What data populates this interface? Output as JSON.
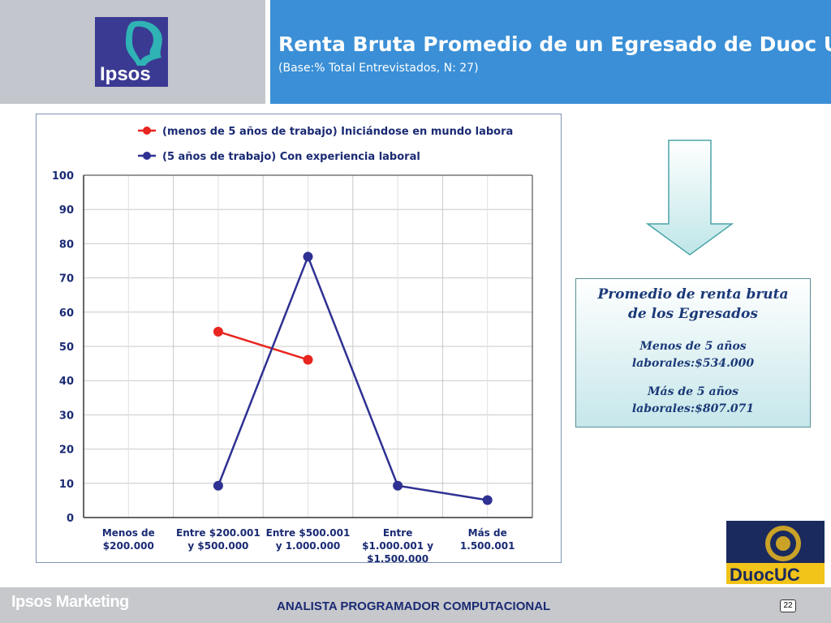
{
  "header": {
    "title": "Renta Bruta Promedio de un Egresado de Duoc UC",
    "subtitle": "(Base:% Total Entrevistados, N: 27)",
    "logo_text": "Ipsos"
  },
  "chart_data": {
    "type": "line",
    "categories": [
      [
        "Menos de",
        "$200.000"
      ],
      [
        "Entre $200.001",
        "y $500.000"
      ],
      [
        "Entre $500.001",
        "y 1.000.000"
      ],
      [
        "Entre",
        "$1.000.001 y",
        "$1.500.000"
      ],
      [
        "Más de",
        "1.500.001"
      ]
    ],
    "ylim": [
      0,
      100
    ],
    "yticks": [
      "0",
      "10",
      "20",
      "30",
      "40",
      "50",
      "60",
      "70",
      "80",
      "90",
      "100"
    ],
    "grid": true,
    "legend_position": "top",
    "series": [
      {
        "name": "(menos de 5 años de trabajo) Iniciándose en mundo labora",
        "color": "#e8251f",
        "values": [
          null,
          54.3,
          46.1,
          null,
          null
        ]
      },
      {
        "name": "(5 años de trabajo) Con experiencia laboral",
        "color": "#2e3192",
        "values": [
          null,
          9.3,
          76.2,
          9.3,
          5.1
        ]
      }
    ]
  },
  "info_box": {
    "title": "Promedio de renta bruta de los Egresados",
    "line1": "Menos de 5 años laborales:$534.000",
    "line2": "Más de 5 años laborales:$807.071"
  },
  "footer": {
    "brand": "Ipsos Marketing",
    "text": "ANALISTA PROGRAMADOR COMPUTACIONAL",
    "page": "22",
    "duoc_logo_text": "DuocUC"
  },
  "colors": {
    "header_blue": "#3a8fd6",
    "header_gray": "#c3c6cc",
    "footer_gray": "#c6c8cc",
    "text_navy": "#1a2a73"
  }
}
